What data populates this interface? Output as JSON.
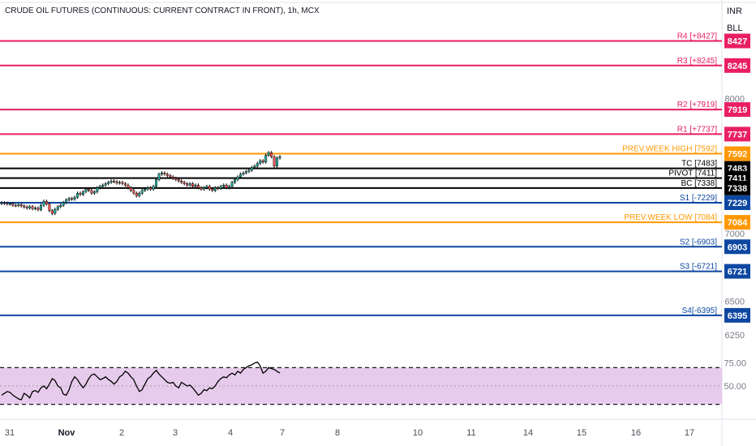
{
  "header": {
    "title": "CRUDE OIL FUTURES (CONTINUOUS: CURRENT CONTRACT IN FRONT), 1h, MCX",
    "currency": "INR",
    "unit": "BLL"
  },
  "chart_data": [
    {
      "type": "candlestick",
      "title": "CRUDE OIL FUTURES (CONTINUOUS: CURRENT CONTRACT IN FRONT), 1h, MCX",
      "ylim": [
        6160,
        8520
      ],
      "y_ticks": [
        8000,
        7000,
        6500,
        6250
      ],
      "x_ticks": [
        "31",
        "Nov",
        "2",
        "3",
        "4",
        "7",
        "8",
        "10",
        "11",
        "14",
        "15",
        "16",
        "17"
      ],
      "level_lines": [
        {
          "label": "R4 [+8427]",
          "value": 8427,
          "color": "#e91e63"
        },
        {
          "label": "R3 [+8245]",
          "value": 8245,
          "color": "#e91e63"
        },
        {
          "label": "R2 [+7919]",
          "value": 7919,
          "color": "#e91e63"
        },
        {
          "label": "R1 [+7737]",
          "value": 7737,
          "color": "#e91e63"
        },
        {
          "label": "PREV.WEEK HIGH [7592]",
          "value": 7592,
          "color": "#ff9800"
        },
        {
          "label": "TC [7483]",
          "value": 7483,
          "color": "#000000"
        },
        {
          "label": "PIVOT [7411]",
          "value": 7411,
          "color": "#000000"
        },
        {
          "label": "BC [7338]",
          "value": 7338,
          "color": "#000000"
        },
        {
          "label": "S1 [-7229]",
          "value": 7229,
          "color": "#0d47a1"
        },
        {
          "label": "PREV.WEEK LOW [7084]",
          "value": 7084,
          "color": "#ff9800"
        },
        {
          "label": "S2 [-6903]",
          "value": 6903,
          "color": "#0d47a1"
        },
        {
          "label": "S3 [-6721]",
          "value": 6721,
          "color": "#0d47a1"
        },
        {
          "label": "S4[-6395]",
          "value": 6395,
          "color": "#0d47a1"
        }
      ],
      "closes": [
        7228,
        7225,
        7220,
        7222,
        7210,
        7208,
        7215,
        7205,
        7198,
        7190,
        7200,
        7185,
        7190,
        7178,
        7210,
        7240,
        7220,
        7170,
        7150,
        7180,
        7200,
        7210,
        7230,
        7250,
        7260,
        7255,
        7270,
        7300,
        7290,
        7310,
        7330,
        7320,
        7300,
        7310,
        7340,
        7350,
        7360,
        7370,
        7380,
        7390,
        7385,
        7375,
        7380,
        7370,
        7360,
        7340,
        7320,
        7300,
        7280,
        7300,
        7320,
        7330,
        7340,
        7330,
        7350,
        7400,
        7440,
        7450,
        7440,
        7430,
        7420,
        7410,
        7400,
        7390,
        7380,
        7370,
        7360,
        7370,
        7350,
        7360,
        7340,
        7330,
        7340,
        7350,
        7330,
        7320,
        7340,
        7335,
        7350,
        7360,
        7340,
        7350,
        7380,
        7400,
        7420,
        7440,
        7450,
        7460,
        7470,
        7490,
        7500,
        7520,
        7540,
        7530,
        7580,
        7600,
        7570,
        7500,
        7560,
        7570
      ],
      "rsi": {
        "bands": [
          70,
          30
        ],
        "mid": 50,
        "y_ticks": [
          75,
          50
        ],
        "values": [
          40,
          42,
          44,
          43,
          40,
          38,
          36,
          35,
          42,
          40,
          37,
          44,
          45,
          43,
          48,
          50,
          47,
          52,
          58,
          56,
          50,
          48,
          41,
          40,
          46,
          55,
          60,
          57,
          52,
          48,
          52,
          58,
          62,
          63,
          60,
          57,
          58,
          60,
          57,
          55,
          52,
          55,
          60,
          62,
          66,
          64,
          60,
          57,
          50,
          44,
          46,
          52,
          58,
          60,
          64,
          67,
          63,
          60,
          57,
          54,
          53,
          54,
          50,
          48,
          54,
          52,
          50,
          51,
          48,
          44,
          40,
          42,
          46,
          45,
          48,
          47,
          50,
          55,
          58,
          60,
          59,
          62,
          64,
          62,
          66,
          64,
          68,
          70,
          72,
          73,
          75,
          76,
          72,
          64,
          66,
          70,
          69,
          68,
          66,
          64
        ]
      }
    }
  ]
}
